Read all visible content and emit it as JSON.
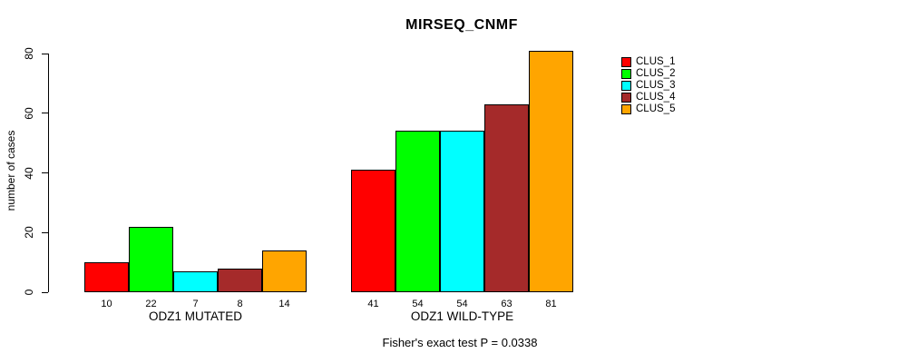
{
  "chart_data": {
    "type": "bar",
    "title": "MIRSEQ_CNMF",
    "ylabel": "number of cases",
    "xlabel": "",
    "ylim": [
      0,
      80
    ],
    "yticks": [
      0,
      20,
      40,
      60,
      80
    ],
    "grid": false,
    "legend_position": "right-outside",
    "groups": [
      {
        "label": "ODZ1 MUTATED",
        "values": [
          10,
          22,
          7,
          8,
          14
        ]
      },
      {
        "label": "ODZ1 WILD-TYPE",
        "values": [
          41,
          54,
          54,
          63,
          81
        ]
      }
    ],
    "series": [
      {
        "name": "CLUS_1",
        "color": "#FF0000"
      },
      {
        "name": "CLUS_2",
        "color": "#00FF00"
      },
      {
        "name": "CLUS_3",
        "color": "#00FFFF"
      },
      {
        "name": "CLUS_4",
        "color": "#A52A2A"
      },
      {
        "name": "CLUS_5",
        "color": "#FFA500"
      }
    ],
    "annotation": "Fisher's exact test P = 0.0338"
  },
  "colors": {
    "axis": "#000000",
    "bar_border": "#000000",
    "background": "#FFFFFF"
  }
}
